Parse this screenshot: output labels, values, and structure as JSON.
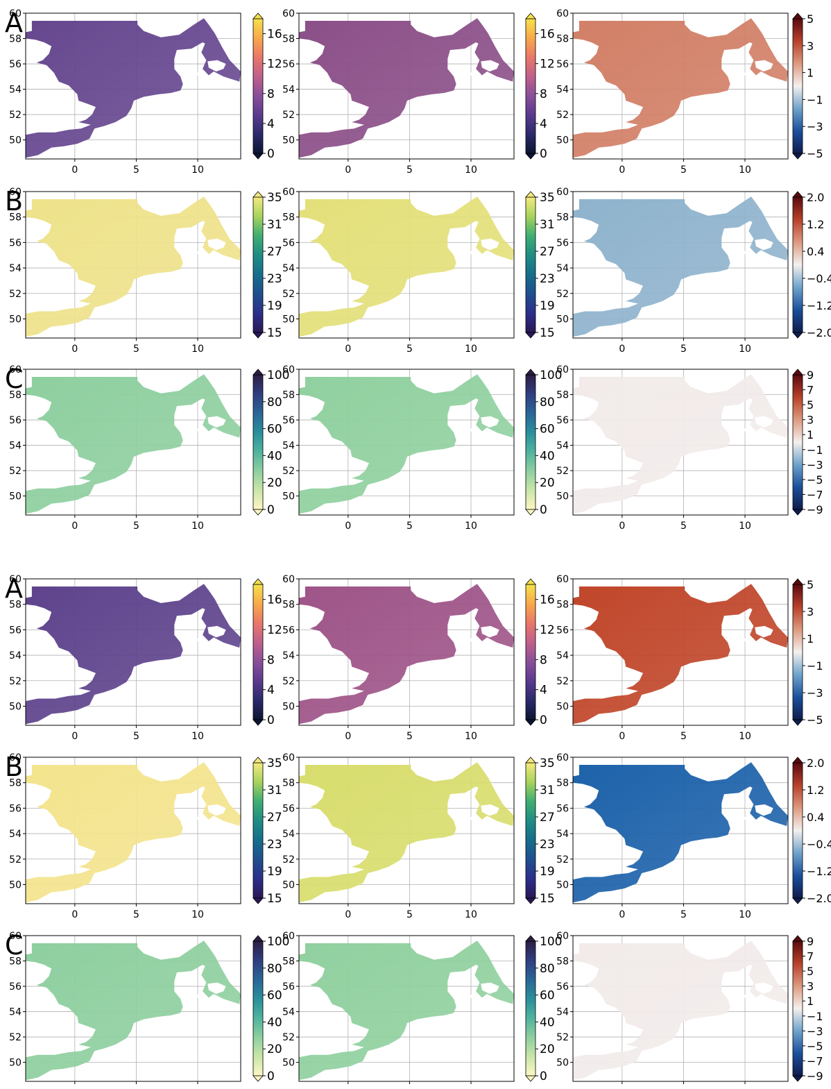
{
  "figure": {
    "rows": [
      {
        "letter": "A",
        "kind": "temp"
      },
      {
        "letter": "B",
        "kind": "sal"
      },
      {
        "letter": "C",
        "kind": "depth"
      },
      {
        "letter": "A",
        "kind": "temp"
      },
      {
        "letter": "B",
        "kind": "sal"
      },
      {
        "letter": "C",
        "kind": "depth"
      }
    ]
  },
  "chart_data": {
    "type": "heatmap",
    "panel_grid": "6 rows x 3 columns",
    "x_ticks": [
      "0",
      "5",
      "10"
    ],
    "x_range": [
      -4,
      13.5
    ],
    "y_ticks": [
      "50",
      "52",
      "54",
      "56",
      "58",
      "60"
    ],
    "y_range": [
      48.5,
      60
    ],
    "grid": true,
    "colorbars": {
      "temp": {
        "ticks": [
          "0",
          "4",
          "8",
          "12",
          "16"
        ],
        "range": [
          0,
          18
        ],
        "extend": "both",
        "colors": [
          "#0c1533",
          "#2b2a6b",
          "#5b3a8e",
          "#8a4f9a",
          "#c0608b",
          "#e9776a",
          "#f8a94a",
          "#f5e14a"
        ]
      },
      "sal": {
        "ticks": [
          "15",
          "19",
          "23",
          "27",
          "31",
          "35"
        ],
        "range": [
          15,
          35
        ],
        "extend": "both",
        "colors": [
          "#2a1856",
          "#2c2f8a",
          "#1f4f8e",
          "#166e8b",
          "#1f8d84",
          "#3fae72",
          "#a7d35c",
          "#f5e97e"
        ]
      },
      "depth": {
        "ticks": [
          "0",
          "20",
          "40",
          "60",
          "80",
          "100"
        ],
        "range": [
          0,
          100
        ],
        "extend": "both",
        "colors": [
          "#fdf6c3",
          "#c9e6a8",
          "#8ecfa0",
          "#4fb39e",
          "#2a8f9c",
          "#2a6697",
          "#303e7f",
          "#2c1e45"
        ]
      },
      "diff5": {
        "ticks": [
          "5",
          "3",
          "1",
          "−1",
          "−3",
          "−5"
        ],
        "range": [
          -5,
          5
        ],
        "extend": "both",
        "colors": [
          "#0e1d4d",
          "#1b4f9b",
          "#6fa3cc",
          "#f5f0ee",
          "#dd9a80",
          "#b8412b",
          "#5a0a0e"
        ]
      },
      "diff2": {
        "ticks": [
          "2.0",
          "1.2",
          "0.4",
          "−0.4",
          "−1.2",
          "−2.0"
        ],
        "range": [
          -2,
          2
        ],
        "extend": "both",
        "colors": [
          "#0e1d4d",
          "#1b4f9b",
          "#6fa3cc",
          "#f5f0ee",
          "#dd9a80",
          "#b8412b",
          "#5a0a0e"
        ]
      },
      "diff9": {
        "ticks": [
          "9",
          "7",
          "5",
          "3",
          "1",
          "−1",
          "−3",
          "−5",
          "−7",
          "−9"
        ],
        "range": [
          -9,
          9
        ],
        "extend": "both",
        "colors": [
          "#0e1d4d",
          "#1b4f9b",
          "#6fa3cc",
          "#f5f0ee",
          "#dd9a80",
          "#b8412b",
          "#5a0a0e"
        ]
      }
    },
    "map_fill": {
      "r0": [
        "#66478f",
        "#8b4f88",
        "#d27f66"
      ],
      "r1": [
        "#eee28a",
        "#e3e07a",
        "#8fb3cd"
      ],
      "r2": [
        "#8ecf9f",
        "#90d09f",
        "#f2ebea"
      ],
      "r3": [
        "#5e438c",
        "#9e5488",
        "#c0462a"
      ],
      "r4": [
        "#f3e48d",
        "#d8dd6d",
        "#1d62aa"
      ],
      "r5": [
        "#8ecf9f",
        "#90d09f",
        "#f2ebea"
      ]
    }
  }
}
